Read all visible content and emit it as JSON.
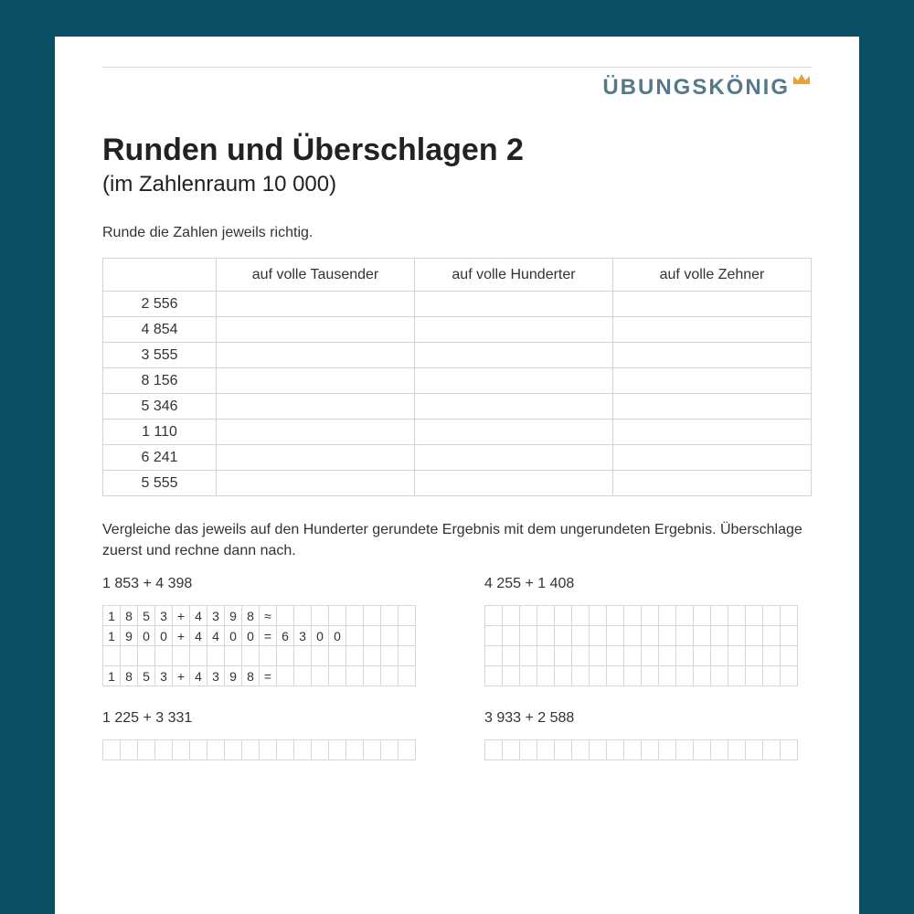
{
  "colors": {
    "page_bg": "#094e63",
    "sheet_bg": "#ffffff",
    "rule": "#c7dbe4",
    "brand_text": "#56798a",
    "crown": "#e8a23a",
    "text": "#2b2b2b",
    "table_border": "#d3d3d3",
    "grid_border": "#d7d7d7"
  },
  "brand": {
    "name": "ÜBUNGSKÖNIG"
  },
  "title": "Runden und Überschlagen 2",
  "subtitle": "(im Zahlenraum 10 000)",
  "instruction1": "Runde die Zahlen jeweils richtig.",
  "rounding_table": {
    "columns": [
      "",
      "auf volle Tausender",
      "auf volle Hunderter",
      "auf volle Zehner"
    ],
    "rows": [
      [
        "2 556",
        "",
        "",
        ""
      ],
      [
        "4 854",
        "",
        "",
        ""
      ],
      [
        "3 555",
        "",
        "",
        ""
      ],
      [
        "8 156",
        "",
        "",
        ""
      ],
      [
        "5 346",
        "",
        "",
        ""
      ],
      [
        "1 110",
        "",
        "",
        ""
      ],
      [
        "6 241",
        "",
        "",
        ""
      ],
      [
        "5 555",
        "",
        "",
        ""
      ]
    ],
    "col_widths_pct": [
      16,
      28,
      28,
      28
    ]
  },
  "instruction2": "Vergleiche das jeweils auf den Hunderter gerundete Ergebnis mit dem ungerundeten Ergebnis. Überschlage zuerst und rechne dann nach.",
  "grid": {
    "cols": 18,
    "rows": 4
  },
  "problems": [
    {
      "label": "1 853 + 4 398",
      "lines": [
        [
          "1",
          "8",
          "5",
          "3",
          "+",
          "4",
          "3",
          "9",
          "8",
          "≈",
          "",
          "",
          "",
          "",
          "",
          "",
          "",
          ""
        ],
        [
          "1",
          "9",
          "0",
          "0",
          "+",
          "4",
          "4",
          "0",
          "0",
          "=",
          "6",
          "3",
          "0",
          "0",
          "",
          "",
          "",
          ""
        ],
        [
          "",
          "",
          "",
          "",
          "",
          "",
          "",
          "",
          "",
          "",
          "",
          "",
          "",
          "",
          "",
          "",
          "",
          ""
        ],
        [
          "1",
          "8",
          "5",
          "3",
          "+",
          "4",
          "3",
          "9",
          "8",
          "=",
          "",
          "",
          "",
          "",
          "",
          "",
          "",
          ""
        ]
      ]
    },
    {
      "label": "4 255 + 1 408",
      "lines": [
        [
          "",
          "",
          "",
          "",
          "",
          "",
          "",
          "",
          "",
          "",
          "",
          "",
          "",
          "",
          "",
          "",
          "",
          ""
        ],
        [
          "",
          "",
          "",
          "",
          "",
          "",
          "",
          "",
          "",
          "",
          "",
          "",
          "",
          "",
          "",
          "",
          "",
          ""
        ],
        [
          "",
          "",
          "",
          "",
          "",
          "",
          "",
          "",
          "",
          "",
          "",
          "",
          "",
          "",
          "",
          "",
          "",
          ""
        ],
        [
          "",
          "",
          "",
          "",
          "",
          "",
          "",
          "",
          "",
          "",
          "",
          "",
          "",
          "",
          "",
          "",
          "",
          ""
        ]
      ]
    },
    {
      "label": "1 225 + 3 331",
      "lines": [
        [
          "",
          "",
          "",
          "",
          "",
          "",
          "",
          "",
          "",
          "",
          "",
          "",
          "",
          "",
          "",
          "",
          "",
          ""
        ]
      ]
    },
    {
      "label": "3 933 + 2 588",
      "lines": [
        [
          "",
          "",
          "",
          "",
          "",
          "",
          "",
          "",
          "",
          "",
          "",
          "",
          "",
          "",
          "",
          "",
          "",
          ""
        ]
      ]
    }
  ]
}
